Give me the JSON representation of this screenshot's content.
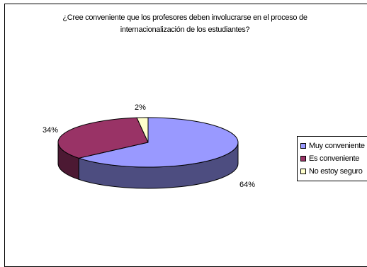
{
  "chart_data": {
    "type": "pie",
    "title_lines": [
      "¿Cree conveniente que los profesores deben involucrarse en el proceso de",
      "internacionalización de los estudiantes?"
    ],
    "slices": [
      {
        "label": "Muy conveniente",
        "value": 64,
        "value_label": "64%",
        "color": "#9999ff",
        "side_color": "#4d4d80"
      },
      {
        "label": "Es conveniente",
        "value": 34,
        "value_label": "34%",
        "color": "#993366",
        "side_color": "#4c1933"
      },
      {
        "label": "No estoy seguro",
        "value": 2,
        "value_label": "2%",
        "color": "#ffffcc",
        "side_color": "#808066"
      }
    ],
    "style": "3d-pie",
    "legend_position": "right"
  }
}
